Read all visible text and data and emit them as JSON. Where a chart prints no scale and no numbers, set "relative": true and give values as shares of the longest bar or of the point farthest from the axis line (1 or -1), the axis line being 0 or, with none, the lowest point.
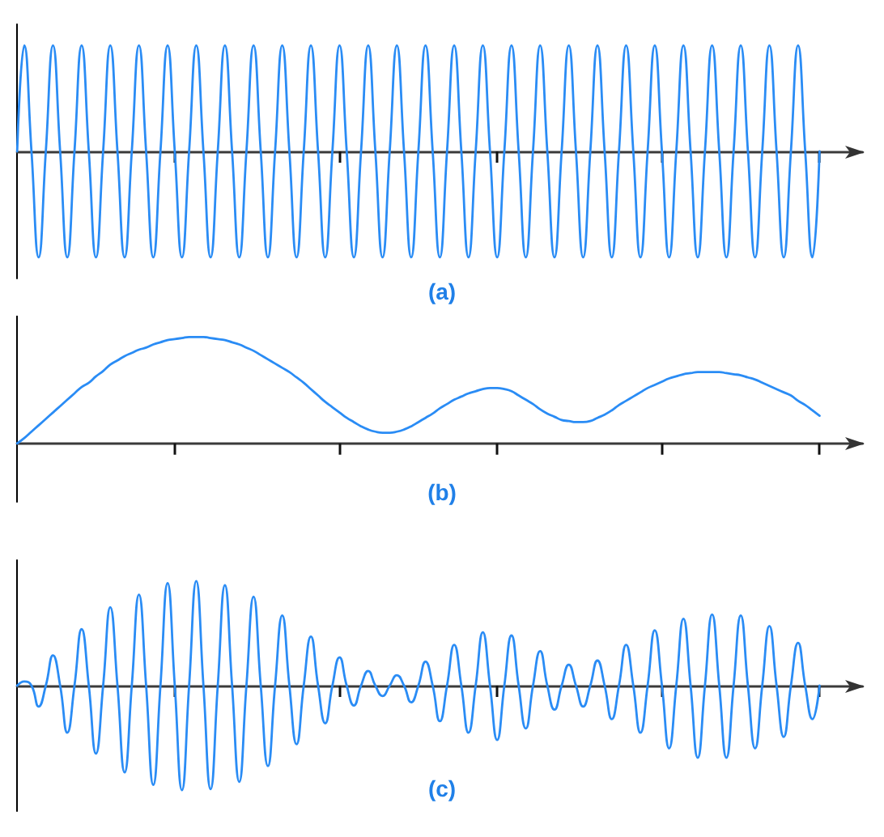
{
  "chart_data": [
    {
      "type": "line",
      "title": "(a)",
      "relative": true,
      "color": "#2a8cf5",
      "categories": [
        null,
        null,
        null,
        null,
        null,
        null,
        null,
        null,
        null,
        null,
        null,
        null,
        null,
        null,
        null,
        null,
        null,
        null,
        null,
        null,
        null,
        null,
        null,
        null,
        null,
        null,
        null,
        null,
        null,
        null,
        null,
        null,
        null,
        null,
        null,
        null,
        null,
        null,
        null,
        null,
        null,
        null,
        null,
        null,
        null,
        null,
        null,
        null,
        null,
        null,
        null,
        null,
        null,
        null,
        null,
        null,
        null,
        null,
        null,
        null,
        null,
        null,
        null,
        null,
        null,
        null,
        null,
        null,
        null,
        null,
        null,
        null,
        null,
        null,
        null,
        null,
        null,
        null,
        null,
        null,
        null,
        null,
        null,
        null,
        null,
        null,
        null,
        null,
        null,
        null,
        null,
        null,
        null,
        null,
        null,
        null,
        null,
        null,
        null,
        null,
        null,
        null,
        null,
        null,
        null,
        null,
        null,
        null,
        null,
        null,
        null,
        null,
        null
      ],
      "values": [
        0,
        1,
        0,
        -1,
        0,
        1,
        0,
        -1,
        0,
        1,
        0,
        -1,
        0,
        1,
        0,
        -1,
        0,
        1,
        0,
        -1,
        0,
        1,
        0,
        -1,
        0,
        1,
        0,
        -1,
        0,
        1,
        0,
        -1,
        0,
        1,
        0,
        -1,
        0,
        1,
        0,
        -1,
        0,
        1,
        0,
        -1,
        0,
        1,
        0,
        -1,
        0,
        1,
        0,
        -1,
        0,
        1,
        0,
        -1,
        0,
        1,
        0,
        -1,
        0,
        1,
        0,
        -1,
        0,
        1,
        0,
        -1,
        0,
        1,
        0,
        -1,
        0,
        1,
        0,
        -1,
        0,
        1,
        0,
        -1,
        0,
        1,
        0,
        -1,
        0,
        1,
        0,
        -1,
        0,
        1,
        0,
        -1,
        0,
        1,
        0,
        -1,
        0,
        1,
        0,
        -1,
        0,
        1,
        0,
        -1,
        0,
        1,
        0,
        -1,
        0,
        1,
        0,
        -1,
        0
      ]
    },
    {
      "type": "line",
      "title": "(b)",
      "relative": true,
      "color": "#2a8cf5",
      "categories": [
        null,
        null,
        null,
        null,
        null,
        null,
        null,
        null,
        null,
        null,
        null,
        null,
        null,
        null,
        null,
        null,
        null,
        null,
        null,
        null,
        null,
        null,
        null,
        null,
        null,
        null,
        null,
        null,
        null,
        null,
        null,
        null,
        null,
        null,
        null,
        null,
        null,
        null,
        null,
        null,
        null,
        null,
        null,
        null,
        null,
        null,
        null,
        null,
        null,
        null,
        null,
        null,
        null,
        null,
        null,
        null,
        null,
        null,
        null,
        null,
        null,
        null,
        null,
        null,
        null,
        null,
        null,
        null,
        null,
        null,
        null,
        null,
        null,
        null,
        null,
        null,
        null,
        null,
        null,
        null,
        null,
        null,
        null,
        null,
        null,
        null,
        null,
        null,
        null,
        null,
        null,
        null,
        null,
        null,
        null,
        null,
        null,
        null,
        null,
        null,
        null,
        null,
        null,
        null,
        null,
        null,
        null,
        null,
        null,
        null,
        null,
        null,
        null
      ],
      "values": [
        0,
        0.05,
        0.11,
        0.17,
        0.23,
        0.29,
        0.35,
        0.41,
        0.47,
        0.53,
        0.57,
        0.63,
        0.68,
        0.74,
        0.78,
        0.82,
        0.85,
        0.88,
        0.9,
        0.93,
        0.95,
        0.97,
        0.98,
        0.99,
        1,
        1,
        1,
        0.99,
        0.98,
        0.97,
        0.95,
        0.93,
        0.9,
        0.87,
        0.83,
        0.79,
        0.75,
        0.71,
        0.67,
        0.62,
        0.57,
        0.51,
        0.45,
        0.39,
        0.34,
        0.29,
        0.24,
        0.2,
        0.16,
        0.13,
        0.11,
        0.1,
        0.1,
        0.11,
        0.13,
        0.16,
        0.2,
        0.24,
        0.28,
        0.33,
        0.37,
        0.41,
        0.44,
        0.47,
        0.49,
        0.51,
        0.52,
        0.52,
        0.51,
        0.49,
        0.45,
        0.41,
        0.37,
        0.32,
        0.28,
        0.25,
        0.22,
        0.21,
        0.2,
        0.2,
        0.21,
        0.24,
        0.27,
        0.31,
        0.36,
        0.4,
        0.44,
        0.48,
        0.52,
        0.55,
        0.58,
        0.61,
        0.63,
        0.65,
        0.66,
        0.67,
        0.67,
        0.67,
        0.67,
        0.66,
        0.65,
        0.64,
        0.62,
        0.6,
        0.57,
        0.54,
        0.51,
        0.48,
        0.45,
        0.4,
        0.36,
        0.31,
        0.26
      ]
    },
    {
      "type": "line",
      "title": "(c)",
      "relative": true,
      "color": "#2a8cf5",
      "categories": [
        null,
        null,
        null,
        null,
        null,
        null,
        null,
        null,
        null,
        null,
        null,
        null,
        null,
        null,
        null,
        null,
        null,
        null,
        null,
        null,
        null,
        null,
        null,
        null,
        null,
        null,
        null,
        null,
        null,
        null,
        null,
        null,
        null,
        null,
        null,
        null,
        null,
        null,
        null,
        null,
        null,
        null,
        null,
        null,
        null,
        null,
        null,
        null,
        null,
        null,
        null,
        null,
        null,
        null,
        null,
        null,
        null,
        null,
        null,
        null,
        null,
        null,
        null,
        null,
        null,
        null,
        null,
        null,
        null,
        null,
        null,
        null,
        null,
        null,
        null,
        null,
        null,
        null,
        null,
        null,
        null,
        null,
        null,
        null,
        null,
        null,
        null,
        null,
        null,
        null,
        null,
        null,
        null,
        null,
        null,
        null,
        null,
        null,
        null,
        null,
        null,
        null,
        null,
        null,
        null,
        null,
        null,
        null,
        null,
        null,
        null,
        null,
        null
      ],
      "values": [
        0,
        0.04,
        0,
        -0.2,
        0,
        0.29,
        0,
        -0.45,
        0,
        0.54,
        0,
        -0.65,
        0,
        0.75,
        0,
        -0.83,
        0,
        0.87,
        0,
        -0.95,
        0,
        0.98,
        0,
        -1,
        0,
        1,
        0,
        -0.99,
        0,
        0.96,
        0,
        -0.92,
        0,
        0.85,
        0,
        -0.77,
        0,
        0.67,
        0,
        -0.56,
        0,
        0.47,
        0,
        -0.36,
        0,
        0.27,
        0,
        -0.19,
        0,
        0.14,
        0,
        -0.1,
        0,
        0.1,
        0,
        -0.16,
        0,
        0.23,
        0,
        -0.34,
        0,
        0.39,
        0,
        -0.45,
        0,
        0.51,
        0,
        -0.52,
        0,
        0.48,
        0,
        -0.41,
        0,
        0.33,
        0,
        -0.23,
        0,
        0.2,
        0,
        -0.2,
        0,
        0.24,
        0,
        -0.32,
        0,
        0.39,
        0,
        -0.45,
        0,
        0.53,
        0,
        -0.6,
        0,
        0.64,
        0,
        -0.69,
        0,
        0.68,
        0,
        -0.69,
        0,
        0.67,
        0,
        -0.6,
        0,
        0.57,
        0,
        -0.49,
        0,
        0.41,
        0,
        -0.32,
        0
      ]
    }
  ]
}
